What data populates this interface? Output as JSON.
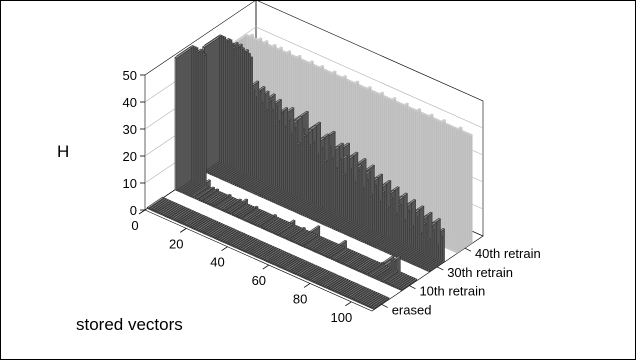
{
  "chart_data": {
    "type": "bar3d",
    "title": "",
    "ylabel": "H",
    "xlabel": "stored vectors",
    "zlim": [
      0,
      50
    ],
    "z_ticks": [
      "0",
      "10",
      "20",
      "30",
      "40",
      "50"
    ],
    "x_ticks": [
      "0",
      "20",
      "40",
      "60",
      "80",
      "100"
    ],
    "grid": true,
    "series": [
      {
        "name": "erased",
        "color": "#8a8a8a",
        "values": [
          0,
          0,
          0,
          0,
          0,
          0,
          0,
          0,
          0,
          0,
          0,
          0,
          0,
          0,
          0,
          0,
          0,
          0,
          0,
          0,
          0,
          0,
          0,
          0,
          0,
          0,
          0,
          0,
          0,
          0,
          0,
          0,
          0,
          0,
          0,
          0,
          0,
          0,
          0,
          0,
          0,
          0,
          0,
          0,
          0,
          0,
          0,
          0,
          0,
          0,
          0,
          0,
          0,
          0,
          0,
          0,
          0,
          0,
          0,
          0,
          0,
          0,
          0,
          0,
          0,
          0,
          0,
          0,
          0,
          0,
          0,
          0,
          0,
          0,
          0,
          0,
          0,
          0,
          0,
          0,
          0,
          0,
          0,
          0,
          0,
          0,
          0,
          0,
          0,
          0,
          0,
          0,
          0,
          0,
          0,
          0,
          0,
          0,
          0,
          0,
          0,
          0,
          0,
          0,
          0,
          0,
          0,
          0,
          0,
          0
        ]
      },
      {
        "name": "10th retrain",
        "color": "#8a8a8a",
        "values": [
          49,
          50,
          50,
          50,
          49,
          50,
          50,
          49,
          0,
          3,
          0,
          1,
          0,
          1,
          0,
          0,
          0,
          0,
          0,
          1,
          0,
          0,
          0,
          0,
          1,
          0,
          0,
          2,
          0,
          0,
          0,
          0,
          1,
          0,
          0,
          0,
          0,
          0,
          0,
          0,
          0,
          1,
          0,
          0,
          0,
          0,
          0,
          0,
          0,
          0,
          2,
          0,
          0,
          0,
          0,
          1,
          0,
          0,
          0,
          0,
          0,
          0,
          4,
          0,
          0,
          0,
          0,
          0,
          0,
          0,
          0,
          0,
          0,
          0,
          0,
          3,
          0,
          0,
          0,
          0,
          0,
          0,
          0,
          0,
          0,
          0,
          0,
          0,
          0,
          0,
          0,
          0,
          0,
          1,
          0,
          0,
          0,
          3,
          5,
          4,
          0,
          6,
          0,
          0,
          0,
          0,
          0,
          0,
          0,
          0
        ]
      },
      {
        "name": "30th retrain",
        "color": "#8a8a8a",
        "values": [
          46,
          47,
          47,
          47,
          46,
          47,
          47,
          46,
          45,
          47,
          46,
          47,
          46,
          45,
          46,
          45,
          44,
          32,
          30,
          36,
          33,
          29,
          35,
          27,
          34,
          31,
          28,
          34,
          30,
          25,
          33,
          29,
          24,
          31,
          27,
          22,
          32,
          25,
          28,
          20,
          30,
          26,
          24,
          33,
          21,
          27,
          23,
          29,
          19,
          31,
          22,
          26,
          18,
          28,
          24,
          20,
          30,
          17,
          25,
          21,
          27,
          16,
          23,
          28,
          19,
          24,
          15,
          26,
          20,
          22,
          14,
          25,
          18,
          21,
          13,
          24,
          17,
          20,
          12,
          22,
          16,
          19,
          11,
          21,
          15,
          18,
          10,
          20,
          14,
          17,
          9,
          19,
          13,
          16,
          8,
          18,
          12,
          15,
          7,
          17,
          11,
          14,
          6,
          16,
          10,
          13,
          5,
          15,
          9,
          12
        ]
      },
      {
        "name": "40th retrain",
        "color": "#c8c8c8",
        "values": [
          40,
          40,
          40,
          41,
          40,
          40,
          40,
          41,
          40,
          40,
          41,
          40,
          40,
          40,
          41,
          40,
          40,
          41,
          40,
          40,
          40,
          41,
          40,
          40,
          40,
          40,
          41,
          40,
          40,
          40,
          40,
          40,
          41,
          40,
          40,
          40,
          40,
          41,
          40,
          40,
          40,
          40,
          40,
          41,
          40,
          40,
          40,
          40,
          41,
          40,
          40,
          40,
          40,
          40,
          41,
          40,
          40,
          40,
          40,
          40,
          41,
          40,
          40,
          40,
          40,
          40,
          41,
          40,
          40,
          40,
          40,
          40,
          41,
          40,
          40,
          40,
          40,
          40,
          41,
          40,
          40,
          40,
          40,
          40,
          41,
          40,
          40,
          40,
          40,
          40,
          41,
          40,
          40,
          40,
          40,
          40,
          41,
          40,
          40,
          40,
          40,
          40,
          40,
          40,
          41,
          40,
          40,
          40,
          40,
          40
        ]
      }
    ]
  }
}
